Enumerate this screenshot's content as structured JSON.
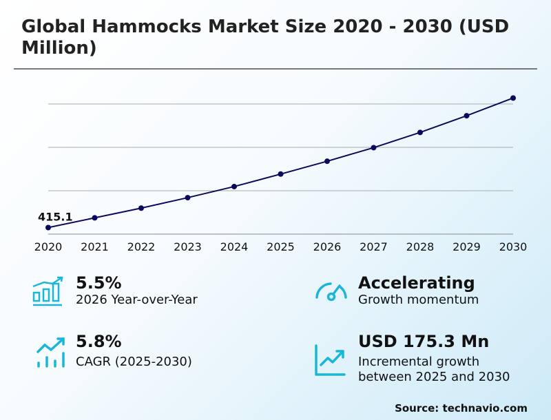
{
  "title": "Global Hammocks Market Size 2020 - 2030 (USD Million)",
  "chart_data": {
    "type": "line",
    "title": "Global Hammocks Market Size 2020 - 2030 (USD Million)",
    "categories": [
      "2020",
      "2021",
      "2022",
      "2023",
      "2024",
      "2025",
      "2026",
      "2027",
      "2028",
      "2029",
      "2030"
    ],
    "series": [
      {
        "values": [
          415.1,
          437.5,
          459.9,
          484.0,
          509.6,
          538.4,
          568.0,
          599.3,
          634.4,
          672.9,
          713.7
        ]
      }
    ],
    "data_labels": [
      {
        "category": "2020",
        "text": "415.1"
      }
    ],
    "ylim": [
      400,
      720
    ],
    "gridlines": [
      400,
      500,
      600,
      700
    ],
    "grid": true,
    "y_tick_labels_shown": false,
    "line_color": "#0a0a5c"
  },
  "kpis": [
    {
      "value": "5.5%",
      "label": "2026 Year-over-Year",
      "icon": "bar-chart-growth-icon"
    },
    {
      "value": "Accelerating",
      "label": "Growth momentum",
      "icon": "speedometer-icon"
    },
    {
      "value": "5.8%",
      "label": "CAGR (2025-2030)",
      "icon": "trend-up-bars-icon"
    },
    {
      "value": "USD 175.3 Mn",
      "label_line1": "Incremental growth",
      "label_line2": "between 2025 and 2030",
      "icon": "line-chart-up-icon"
    }
  ],
  "icon_color": "#1ab6d8",
  "source": "Source: technavio.com"
}
